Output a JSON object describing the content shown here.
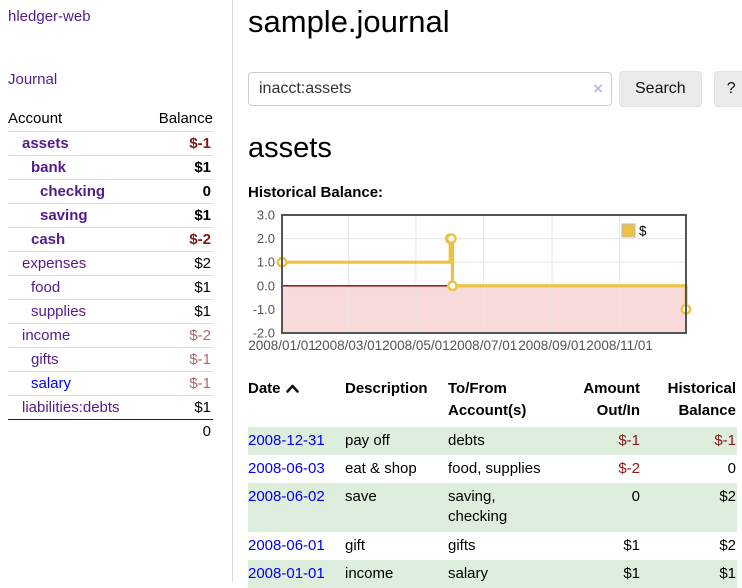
{
  "app": {
    "brand": "hledger-web",
    "nav_journal": "Journal"
  },
  "sidebar": {
    "header": {
      "account": "Account",
      "balance": "Balance"
    },
    "accounts": [
      {
        "name": "assets",
        "indent": 0,
        "balance": "$-1",
        "bold": true,
        "negative": true
      },
      {
        "name": "bank",
        "indent": 1,
        "balance": "$1",
        "bold": true,
        "negative": false
      },
      {
        "name": "checking",
        "indent": 2,
        "balance": "0",
        "bold": true,
        "negative": false
      },
      {
        "name": "saving",
        "indent": 2,
        "balance": "$1",
        "bold": true,
        "negative": false
      },
      {
        "name": "cash",
        "indent": 1,
        "balance": "$-2",
        "bold": true,
        "negative": true
      },
      {
        "name": "expenses",
        "indent": 0,
        "balance": "$2",
        "bold": false,
        "negative": false
      },
      {
        "name": "food",
        "indent": 1,
        "balance": "$1",
        "bold": false,
        "negative": false
      },
      {
        "name": "supplies",
        "indent": 1,
        "balance": "$1",
        "bold": false,
        "negative": false
      },
      {
        "name": "income",
        "indent": 0,
        "balance": "$-2",
        "bold": false,
        "negative": true
      },
      {
        "name": "gifts",
        "indent": 1,
        "balance": "$-1",
        "bold": false,
        "negative": true
      },
      {
        "name": "salary",
        "indent": 1,
        "balance": "$-1",
        "bold": false,
        "negative": true,
        "blue": true
      },
      {
        "name": "liabilities:debts",
        "indent": 0,
        "balance": "$1",
        "bold": false,
        "negative": false
      }
    ],
    "total": "0"
  },
  "header": {
    "title": "sample.journal"
  },
  "search": {
    "value": "inacct:assets",
    "clear_icon": "×",
    "button": "Search",
    "help_button": "?"
  },
  "account_page": {
    "heading": "assets",
    "chart_label": "Historical Balance:"
  },
  "chart_data": {
    "type": "line",
    "step": true,
    "title": "Historical Balance",
    "series": [
      {
        "name": "$",
        "color": "#edc240",
        "points": [
          {
            "date": "2008-01-01",
            "value": 1
          },
          {
            "date": "2008-06-01",
            "value": 2
          },
          {
            "date": "2008-06-02",
            "value": 2
          },
          {
            "date": "2008-06-03",
            "value": 0
          },
          {
            "date": "2008-12-31",
            "value": -1
          }
        ]
      }
    ],
    "xlim": [
      "2008-01-01",
      "2008-12-31"
    ],
    "ylim": [
      -2,
      3
    ],
    "yticks": [
      3.0,
      2.0,
      1.0,
      0.0,
      -1.0,
      -2.0
    ],
    "xticks": [
      "2008/01/01",
      "2008/03/01",
      "2008/05/01",
      "2008/07/01",
      "2008/09/01",
      "2008/11/01"
    ],
    "grid": true,
    "negative_region_color": "#f9dada",
    "zero_line_color": "#8b0000",
    "border_color": "#545454",
    "tick_color": "#545454",
    "legend": {
      "label": "$",
      "position": "top-right"
    }
  },
  "register": {
    "columns": [
      {
        "label": "Date",
        "sort": "asc"
      },
      {
        "label": "Description"
      },
      {
        "label": "To/From Account(s)"
      },
      {
        "label": "Amount Out/In",
        "align": "right"
      },
      {
        "label": "Historical Balance",
        "align": "right"
      }
    ],
    "rows": [
      {
        "date": "2008-12-31",
        "description": "pay off",
        "accounts": "debts",
        "amount": "$-1",
        "balance": "$-1",
        "amount_negative": true,
        "balance_negative": true
      },
      {
        "date": "2008-06-03",
        "description": "eat & shop",
        "accounts": "food, supplies",
        "amount": "$-2",
        "balance": "0",
        "amount_negative": true,
        "balance_negative": false
      },
      {
        "date": "2008-06-02",
        "description": "save",
        "accounts": "saving, checking",
        "amount": "0",
        "balance": "$2",
        "amount_negative": false,
        "balance_negative": false
      },
      {
        "date": "2008-06-01",
        "description": "gift",
        "accounts": "gifts",
        "amount": "$1",
        "balance": "$2",
        "amount_negative": false,
        "balance_negative": false
      },
      {
        "date": "2008-01-01",
        "description": "income",
        "accounts": "salary",
        "amount": "$1",
        "balance": "$1",
        "amount_negative": false,
        "balance_negative": false
      }
    ]
  }
}
